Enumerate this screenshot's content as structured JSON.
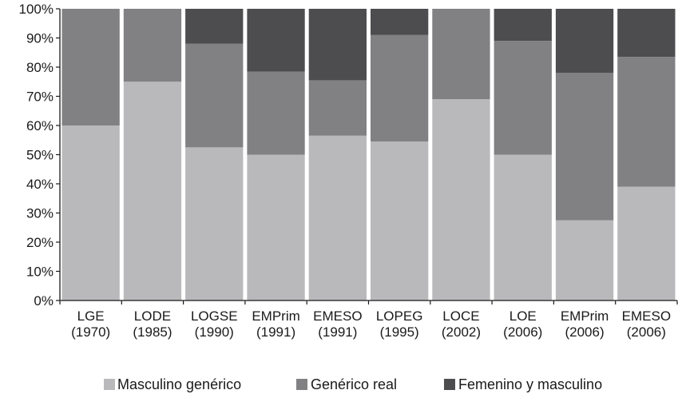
{
  "chart_data": {
    "type": "bar",
    "stacked": true,
    "categories": [
      [
        "LGE",
        "(1970)"
      ],
      [
        "LODE",
        "(1985)"
      ],
      [
        "LOGSE",
        "(1990)"
      ],
      [
        "EMPrim",
        "(1991)"
      ],
      [
        "EMESO",
        "(1991)"
      ],
      [
        "LOPEG",
        "(1995)"
      ],
      [
        "LOCE",
        "(2002)"
      ],
      [
        "LOE",
        "(2006)"
      ],
      [
        "EMPrim",
        "(2006)"
      ],
      [
        "EMESO",
        "(2006)"
      ]
    ],
    "series": [
      {
        "name": "Masculino genérico",
        "color": "#b9b9bc",
        "values": [
          60,
          75,
          52.5,
          50,
          56.5,
          54.5,
          69,
          50,
          27.5,
          39
        ]
      },
      {
        "name": "Genérico real",
        "color": "#818184",
        "values": [
          40,
          25,
          35.5,
          28.5,
          19,
          36.5,
          31,
          39,
          50.5,
          44.5
        ]
      },
      {
        "name": "Femenino y masculino",
        "color": "#4d4d4f",
        "values": [
          0,
          0,
          12,
          21.5,
          24.5,
          9,
          0,
          11,
          22,
          16.5
        ]
      }
    ],
    "y_ticks": [
      "0%",
      "10%",
      "20%",
      "30%",
      "40%",
      "50%",
      "60%",
      "70%",
      "80%",
      "90%",
      "100%"
    ],
    "ylim": [
      0,
      100
    ],
    "grid": false,
    "legend_position": "bottom"
  }
}
